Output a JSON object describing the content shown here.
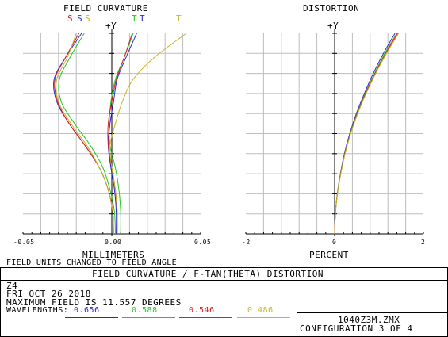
{
  "colors": {
    "wl1": "#2a2ad0",
    "wl2": "#22c822",
    "wl3": "#d82020",
    "wl4": "#c8b428",
    "grid": "#bdbdbd"
  },
  "field_curvature_title": "FIELD CURVATURE",
  "distortion_title": "DISTORTION",
  "legend": {
    "sagittal": [
      "S",
      "S",
      "S"
    ],
    "tangential": [
      "T",
      "T",
      "T"
    ]
  },
  "footer": {
    "title": "FIELD CURVATURE / F-TAN(THETA) DISTORTION",
    "line1": "Z4",
    "line2": "FRI OCT 26 2018",
    "line3": "MAXIMUM FIELD IS 11.557 DEGREES",
    "wavelengths_label": "WAVELENGTHS:",
    "wavelengths": [
      "0.656",
      "0.588",
      "0.546",
      "0.486"
    ],
    "filename": "1040Z3M.ZMX",
    "configuration": "CONFIGURATION 3 OF 4"
  },
  "chart_data": [
    {
      "type": "line",
      "title": "FIELD CURVATURE",
      "xlabel": "MILLIMETERS",
      "xlabel_sub": "FIELD UNITS CHANGED TO FIELD ANGLE",
      "ylabel": "+Y",
      "xlim": [
        -0.05,
        0.05
      ],
      "ylim": [
        0,
        11.557
      ],
      "xticks": [
        "-0.05",
        "0.00",
        "0.05"
      ],
      "grid": true,
      "y": [
        0,
        0.11,
        0.22,
        0.33,
        0.44,
        0.55,
        0.66,
        0.77,
        0.88,
        1.0
      ],
      "series": [
        {
          "name": "S",
          "wavelength": "0.656",
          "values": [
            0.001,
            0.0005,
            -0.002,
            -0.007,
            -0.015,
            -0.024,
            -0.031,
            -0.0325,
            -0.026,
            -0.017
          ]
        },
        {
          "name": "S",
          "wavelength": "0.588",
          "values": [
            0.002,
            0.0015,
            -0.001,
            -0.005,
            -0.012,
            -0.021,
            -0.0285,
            -0.0295,
            -0.0235,
            -0.0155
          ]
        },
        {
          "name": "S",
          "wavelength": "0.546",
          "values": [
            0.001,
            0.0005,
            -0.002,
            -0.007,
            -0.015,
            -0.024,
            -0.0305,
            -0.032,
            -0.026,
            -0.0185
          ]
        },
        {
          "name": "S",
          "wavelength": "0.486",
          "values": [
            0.001,
            0.0005,
            -0.002,
            -0.007,
            -0.014,
            -0.023,
            -0.03,
            -0.031,
            -0.025,
            -0.02
          ]
        },
        {
          "name": "T",
          "wavelength": "0.656",
          "values": [
            0.0025,
            0.0025,
            0.0015,
            -0.0005,
            -0.002,
            -0.001,
            0.001,
            0.003,
            0.008,
            0.014
          ]
        },
        {
          "name": "T",
          "wavelength": "0.588",
          "values": [
            0.005,
            0.005,
            0.004,
            0.002,
            -0.001,
            -0.0015,
            -0.0005,
            0.002,
            0.007,
            0.012
          ]
        },
        {
          "name": "T",
          "wavelength": "0.546",
          "values": [
            0.003,
            0.003,
            0.002,
            0.0,
            -0.002,
            -0.002,
            0.0,
            0.0025,
            0.007,
            0.0115
          ]
        },
        {
          "name": "T",
          "wavelength": "0.486",
          "values": [
            0.003,
            0.003,
            0.002,
            0.0,
            -0.001,
            0.002,
            0.006,
            0.012,
            0.024,
            0.042
          ]
        }
      ]
    },
    {
      "type": "line",
      "title": "DISTORTION",
      "xlabel": "PERCENT",
      "ylabel": "+Y",
      "xlim": [
        -2,
        2
      ],
      "ylim": [
        0,
        11.557
      ],
      "xticks": [
        "-2",
        "0",
        "2"
      ],
      "grid": true,
      "y": [
        0,
        0.1,
        0.2,
        0.3,
        0.4,
        0.5,
        0.6,
        0.7,
        0.8,
        0.9,
        1.0
      ],
      "series": [
        {
          "name": "0.656",
          "values": [
            0,
            0.016,
            0.06,
            0.13,
            0.22,
            0.34,
            0.49,
            0.67,
            0.87,
            1.1,
            1.36
          ]
        },
        {
          "name": "0.588",
          "values": [
            0,
            0.016,
            0.062,
            0.135,
            0.228,
            0.35,
            0.505,
            0.69,
            0.9,
            1.13,
            1.4
          ]
        },
        {
          "name": "0.546",
          "values": [
            0,
            0.016,
            0.063,
            0.137,
            0.232,
            0.356,
            0.512,
            0.7,
            0.91,
            1.15,
            1.42
          ]
        },
        {
          "name": "0.486",
          "values": [
            0,
            0.017,
            0.064,
            0.14,
            0.236,
            0.362,
            0.52,
            0.71,
            0.925,
            1.17,
            1.44
          ]
        }
      ]
    }
  ]
}
